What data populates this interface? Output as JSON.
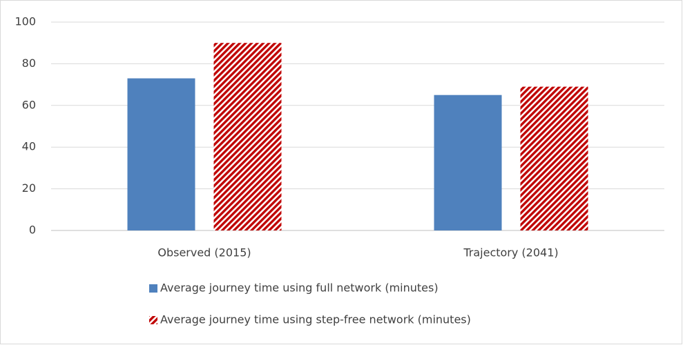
{
  "chart_data": {
    "type": "bar",
    "categories": [
      "Observed (2015)",
      "Trajectory (2041)"
    ],
    "series": [
      {
        "name": "Average journey time using full network (minutes)",
        "color": "#4f81bd",
        "values": [
          73,
          65
        ]
      },
      {
        "name": "Average journey time using step-free network (minutes)",
        "color": "#c00000",
        "pattern": "diagonal-stripes",
        "values": [
          90,
          69
        ]
      }
    ],
    "ylim": [
      0,
      100
    ],
    "yticks": [
      0,
      20,
      40,
      60,
      80,
      100
    ],
    "grid": true,
    "legend": "bottom"
  }
}
